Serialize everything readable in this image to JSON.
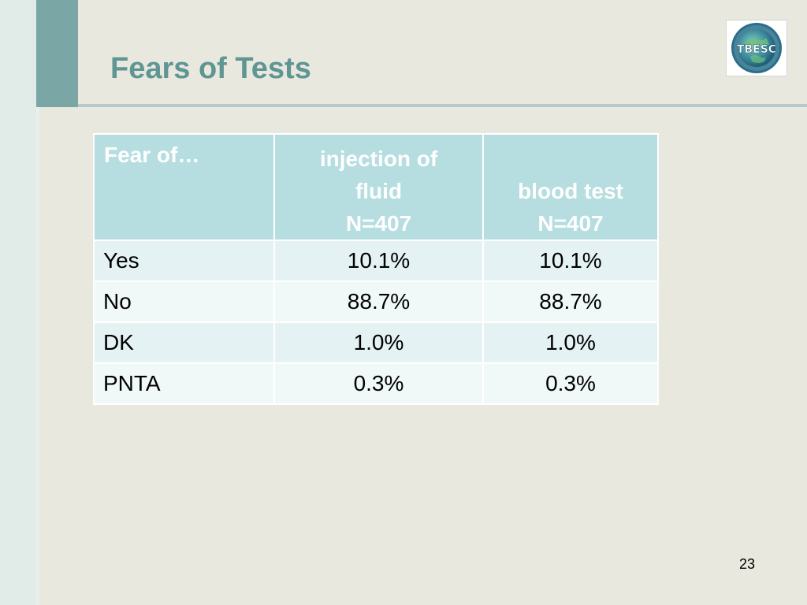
{
  "slide": {
    "title": "Fears of Tests",
    "page_number": "23",
    "logo_text": "TBESC"
  },
  "colors": {
    "title": "#5f9593",
    "header_fill": "#b6dde0",
    "row_odd": "#e4f2f3",
    "row_even": "#f1f8f8",
    "accent_bar": "#7aa6a6"
  },
  "table": {
    "headers": {
      "col0": "Fear of…",
      "col1": [
        "injection of",
        "fluid",
        "N=407"
      ],
      "col2": [
        "blood test",
        "N=407"
      ]
    },
    "rows": [
      {
        "label": "Yes",
        "v1": "10.1%",
        "v2": "10.1%"
      },
      {
        "label": "No",
        "v1": "88.7%",
        "v2": "88.7%"
      },
      {
        "label": "DK",
        "v1": "1.0%",
        "v2": "1.0%"
      },
      {
        "label": "PNTA",
        "v1": "0.3%",
        "v2": "0.3%"
      }
    ]
  }
}
